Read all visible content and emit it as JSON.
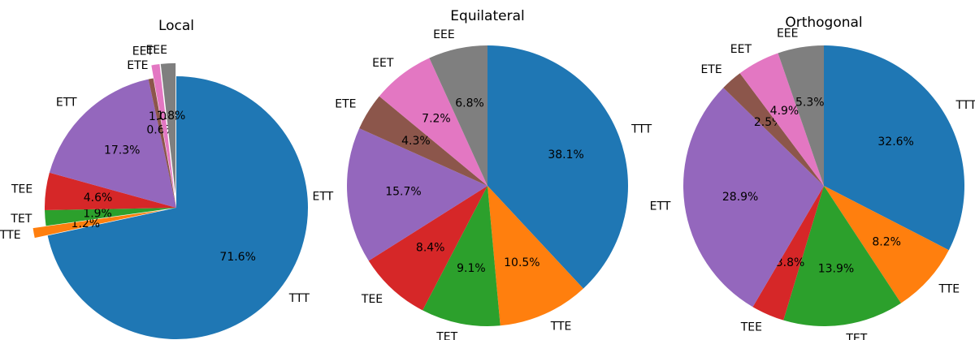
{
  "chart_data": [
    {
      "type": "pie",
      "title": "Local",
      "start_angle_deg": 90,
      "direction": "clockwise",
      "slices": [
        {
          "label": "TTT",
          "value": 71.6,
          "pct_text": "71.6%",
          "color": "#1f77b4",
          "exploded": false
        },
        {
          "label": "TTE",
          "value": 1.2,
          "pct_text": "1.2%",
          "color": "#ff7f0e",
          "exploded": true
        },
        {
          "label": "TET",
          "value": 1.9,
          "pct_text": "1.9%",
          "color": "#2ca02c",
          "exploded": false
        },
        {
          "label": "TEE",
          "value": 4.6,
          "pct_text": "4.6%",
          "color": "#d62728",
          "exploded": false
        },
        {
          "label": "ETT",
          "value": 17.3,
          "pct_text": "17.3%",
          "color": "#9467bd",
          "exploded": false
        },
        {
          "label": "ETE",
          "value": 0.6,
          "pct_text": "0.6%",
          "color": "#8c564b",
          "exploded": false
        },
        {
          "label": "EET",
          "value": 1.0,
          "pct_text": "1.0%",
          "color": "#e377c2",
          "exploded": true
        },
        {
          "label": "EEE",
          "value": 1.8,
          "pct_text": "1.8%",
          "color": "#7f7f7f",
          "exploded": true
        }
      ]
    },
    {
      "type": "pie",
      "title": "Equilateral",
      "start_angle_deg": 90,
      "direction": "clockwise",
      "slices": [
        {
          "label": "TTT",
          "value": 38.1,
          "pct_text": "38.1%",
          "color": "#1f77b4",
          "exploded": false
        },
        {
          "label": "TTE",
          "value": 10.5,
          "pct_text": "10.5%",
          "color": "#ff7f0e",
          "exploded": false
        },
        {
          "label": "TET",
          "value": 9.1,
          "pct_text": "9.1%",
          "color": "#2ca02c",
          "exploded": false
        },
        {
          "label": "TEE",
          "value": 8.4,
          "pct_text": "8.4%",
          "color": "#d62728",
          "exploded": false
        },
        {
          "label": "ETT",
          "value": 15.7,
          "pct_text": "15.7%",
          "color": "#9467bd",
          "exploded": false
        },
        {
          "label": "ETE",
          "value": 4.3,
          "pct_text": "4.3%",
          "color": "#8c564b",
          "exploded": false
        },
        {
          "label": "EET",
          "value": 7.2,
          "pct_text": "7.2%",
          "color": "#e377c2",
          "exploded": false
        },
        {
          "label": "EEE",
          "value": 6.8,
          "pct_text": "6.8%",
          "color": "#7f7f7f",
          "exploded": false
        }
      ]
    },
    {
      "type": "pie",
      "title": "Orthogonal",
      "start_angle_deg": 90,
      "direction": "clockwise",
      "slices": [
        {
          "label": "TTT",
          "value": 32.6,
          "pct_text": "32.6%",
          "color": "#1f77b4",
          "exploded": false
        },
        {
          "label": "TTE",
          "value": 8.2,
          "pct_text": "8.2%",
          "color": "#ff7f0e",
          "exploded": false
        },
        {
          "label": "TET",
          "value": 13.9,
          "pct_text": "13.9%",
          "color": "#2ca02c",
          "exploded": false
        },
        {
          "label": "TEE",
          "value": 3.8,
          "pct_text": "3.8%",
          "color": "#d62728",
          "exploded": false
        },
        {
          "label": "ETT",
          "value": 28.9,
          "pct_text": "28.9%",
          "color": "#9467bd",
          "exploded": false
        },
        {
          "label": "ETE",
          "value": 2.5,
          "pct_text": "2.5%",
          "color": "#8c564b",
          "exploded": false
        },
        {
          "label": "EET",
          "value": 4.9,
          "pct_text": "4.9%",
          "color": "#e377c2",
          "exploded": false
        },
        {
          "label": "EEE",
          "value": 5.3,
          "pct_text": "5.3%",
          "color": "#7f7f7f",
          "exploded": false
        }
      ]
    }
  ]
}
